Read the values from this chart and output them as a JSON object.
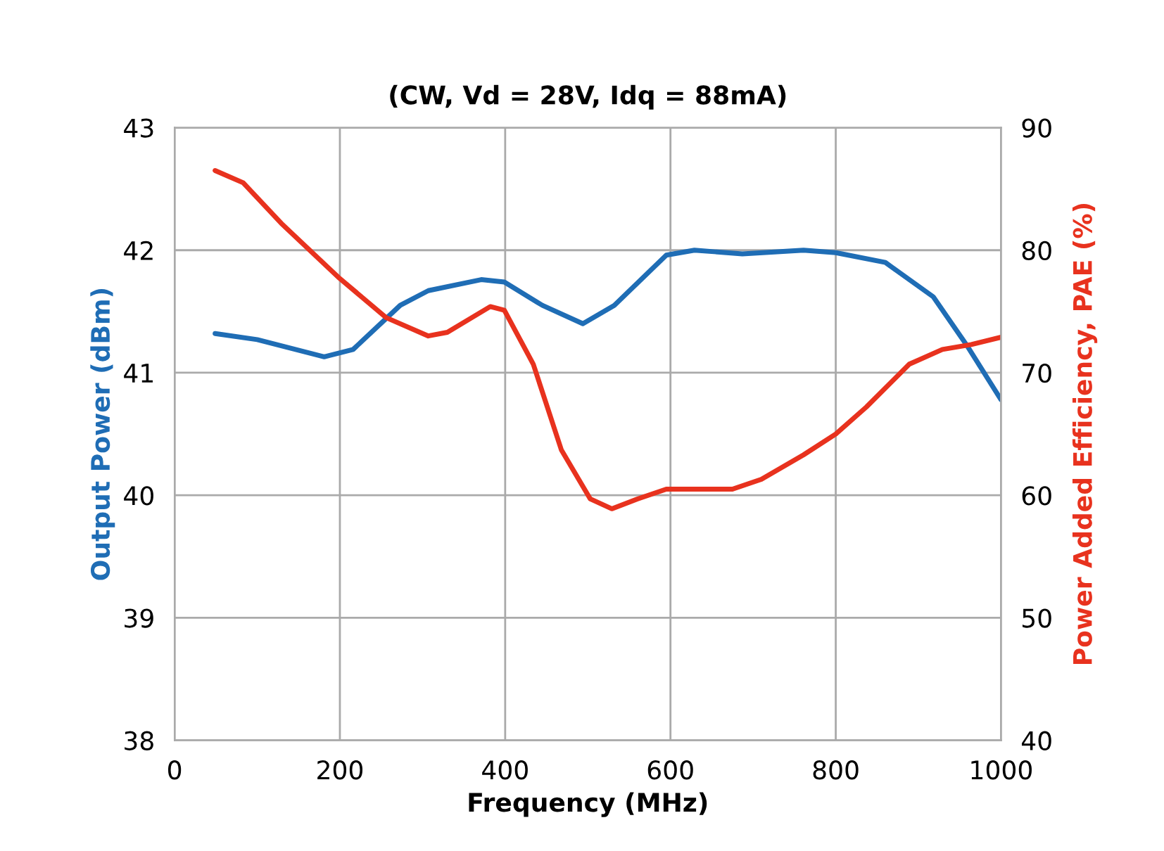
{
  "chart_data": {
    "type": "line",
    "title": "(CW, Vd = 28V, Idq = 88mA)",
    "xlabel": "Frequency (MHz)",
    "ylabel": "Output Power (dBm)",
    "y2label": "Power Added Efficiency, PAE (%)",
    "xlim": [
      0,
      1000
    ],
    "xticks": [
      0,
      200,
      400,
      600,
      800,
      1000
    ],
    "ylim": [
      38,
      43
    ],
    "yticks": [
      38,
      39,
      40,
      41,
      42,
      43
    ],
    "y2lim": [
      40,
      90
    ],
    "y2ticks": [
      40,
      50,
      60,
      70,
      80,
      90
    ],
    "grid": true,
    "series": [
      {
        "color": "#1f6db5",
        "x": [
          49,
          100,
          181,
          216,
          273,
          307,
          371,
          399,
          445,
          494,
          532,
          595,
          629,
          687,
          761,
          800,
          860,
          918,
          958,
          1000
        ],
        "values": [
          41.32,
          41.27,
          41.13,
          41.19,
          41.55,
          41.67,
          41.76,
          41.74,
          41.55,
          41.4,
          41.55,
          41.96,
          42.0,
          41.97,
          42.0,
          41.98,
          41.9,
          41.62,
          41.23,
          40.78
        ]
      },
      {
        "color": "#e8321e",
        "axis": "y2",
        "x": [
          49,
          83,
          129,
          198,
          256,
          307,
          330,
          382,
          399,
          434,
          468,
          503,
          529,
          560,
          595,
          675,
          710,
          761,
          800,
          837,
          889,
          929,
          964,
          1000
        ],
        "values": [
          86.5,
          85.5,
          82.2,
          77.8,
          74.5,
          73.0,
          73.3,
          75.4,
          75.1,
          70.7,
          63.7,
          59.7,
          58.9,
          59.7,
          60.5,
          60.5,
          61.3,
          63.3,
          65.0,
          67.2,
          70.7,
          71.9,
          72.3,
          72.9
        ]
      }
    ]
  }
}
